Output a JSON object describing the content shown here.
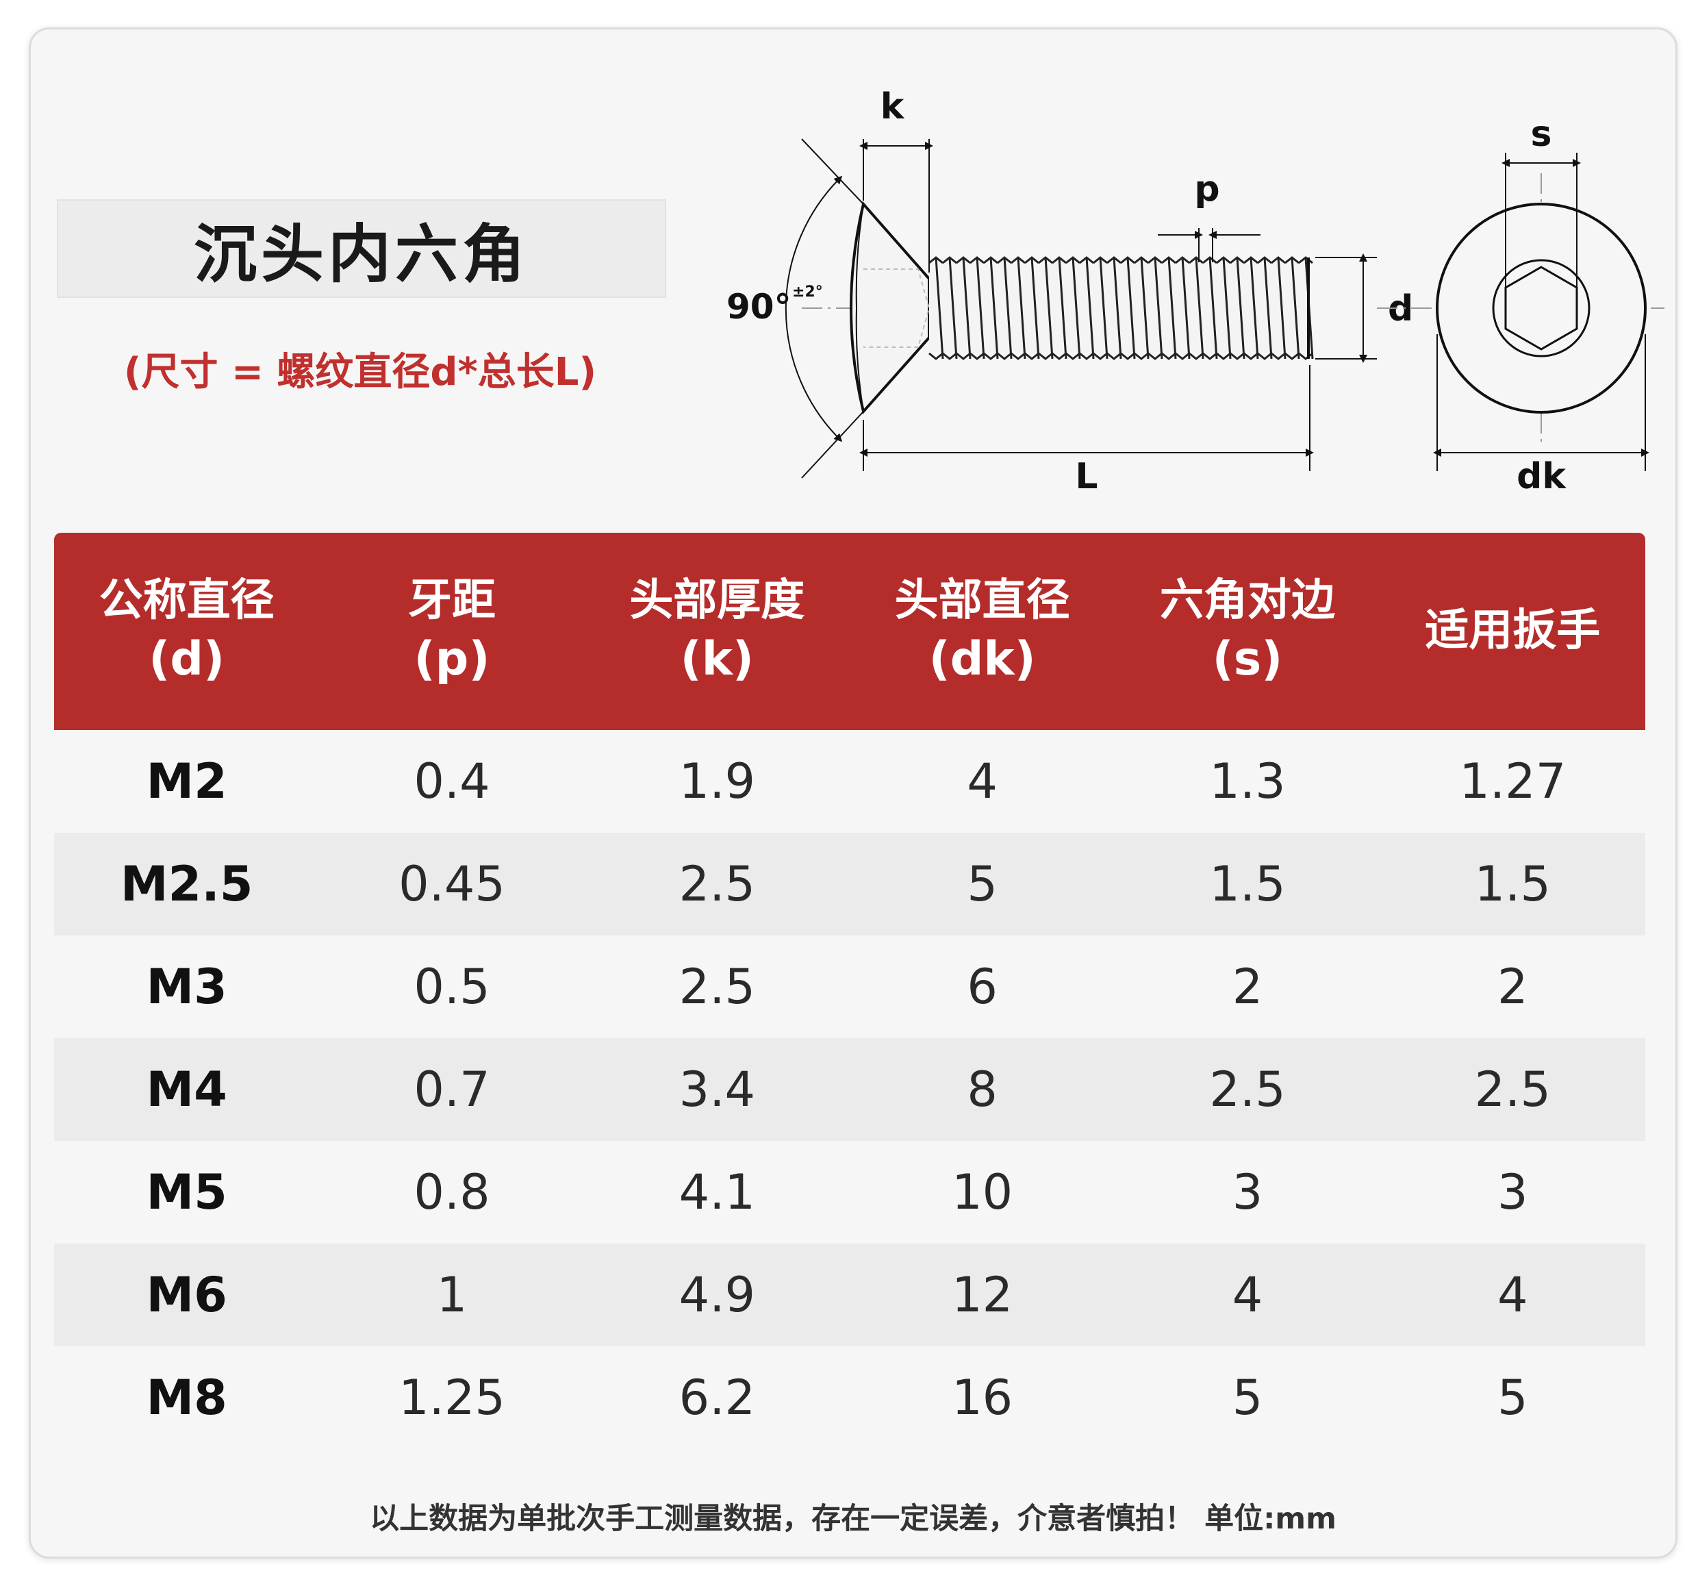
{
  "title": "沉头内六角",
  "subtitle": "(尺寸 = 螺纹直径d*总长L)",
  "diagram": {
    "label_k": "k",
    "label_p": "p",
    "label_d": "d",
    "label_L": "L",
    "label_s": "s",
    "label_dk": "dk",
    "angle": "90°",
    "angle_tol": "±2°"
  },
  "table": {
    "headers": [
      {
        "name": "公称直径",
        "sub": "(d)"
      },
      {
        "name": "牙距",
        "sub": "(p)"
      },
      {
        "name": "头部厚度",
        "sub": "(k)"
      },
      {
        "name": "头部直径",
        "sub": "(dk)"
      },
      {
        "name": "六角对边",
        "sub": "(s)"
      },
      {
        "name": "适用扳手",
        "sub": ""
      }
    ],
    "rows": [
      [
        "M2",
        "0.4",
        "1.9",
        "4",
        "1.3",
        "1.27"
      ],
      [
        "M2.5",
        "0.45",
        "2.5",
        "5",
        "1.5",
        "1.5"
      ],
      [
        "M3",
        "0.5",
        "2.5",
        "6",
        "2",
        "2"
      ],
      [
        "M4",
        "0.7",
        "3.4",
        "8",
        "2.5",
        "2.5"
      ],
      [
        "M5",
        "0.8",
        "4.1",
        "10",
        "3",
        "3"
      ],
      [
        "M6",
        "1",
        "4.9",
        "12",
        "4",
        "4"
      ],
      [
        "M8",
        "1.25",
        "6.2",
        "16",
        "5",
        "5"
      ]
    ]
  },
  "footer": "以上数据为单批次手工测量数据，存在一定误差，介意者慎拍！ 单位:mm"
}
